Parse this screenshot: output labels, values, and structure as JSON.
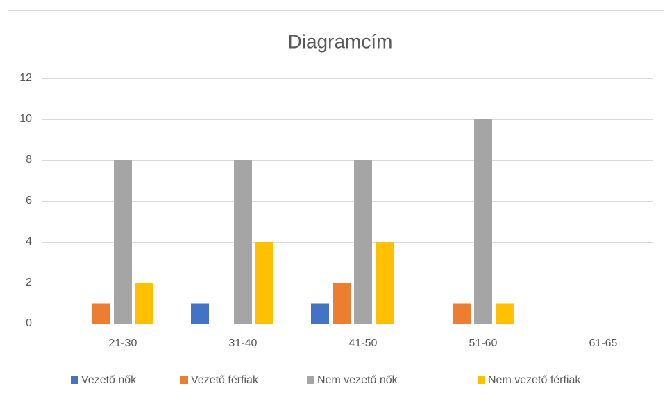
{
  "chart_data": {
    "type": "bar",
    "title": "Diagramcím",
    "categories": [
      "21-30",
      "31-40",
      "41-50",
      "51-60",
      "61-65"
    ],
    "series": [
      {
        "name": "Vezető nők",
        "color": "#4472c4",
        "values": [
          0,
          1,
          1,
          0,
          0
        ]
      },
      {
        "name": "Vezető férfiak",
        "color": "#ed7d31",
        "values": [
          1,
          0,
          2,
          1,
          0
        ]
      },
      {
        "name": "Nem vezető nők",
        "color": "#a5a5a5",
        "values": [
          8,
          8,
          8,
          10,
          0
        ]
      },
      {
        "name": "Nem vezető férfiak",
        "color": "#ffc000",
        "values": [
          2,
          4,
          4,
          1,
          0
        ]
      }
    ],
    "ylim": [
      0,
      12
    ],
    "yticks": [
      0,
      2,
      4,
      6,
      8,
      10,
      12
    ],
    "grid": true,
    "legend": "bottom"
  }
}
